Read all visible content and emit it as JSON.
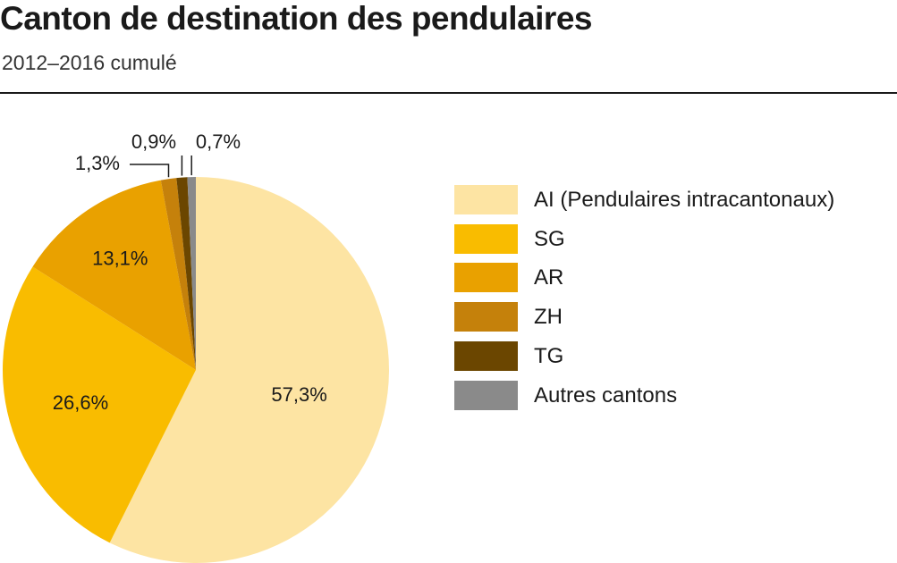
{
  "header": {
    "title": "Canton de destination des pendulaires",
    "subtitle": "2012–2016 cumulé"
  },
  "chart_data": {
    "type": "pie",
    "title": "Canton de destination des pendulaires",
    "subtitle": "2012–2016 cumulé",
    "slices": [
      {
        "label": "AI (Pendulaires intracantonaux)",
        "value": 57.3,
        "display": "57,3%",
        "color": "#fde4a3"
      },
      {
        "label": "SG",
        "value": 26.6,
        "display": "26,6%",
        "color": "#f9bc00"
      },
      {
        "label": "AR",
        "value": 13.1,
        "display": "13,1%",
        "color": "#e9a100"
      },
      {
        "label": "ZH",
        "value": 1.3,
        "display": "1,3%",
        "color": "#c5810b"
      },
      {
        "label": "TG",
        "value": 0.9,
        "display": "0,9%",
        "color": "#6b4600"
      },
      {
        "label": "Autres cantons",
        "value": 0.7,
        "display": "0,7%",
        "color": "#8a8a8a"
      }
    ],
    "start_angle": "12 o'clock",
    "direction": "clockwise",
    "legend_position": "right"
  }
}
